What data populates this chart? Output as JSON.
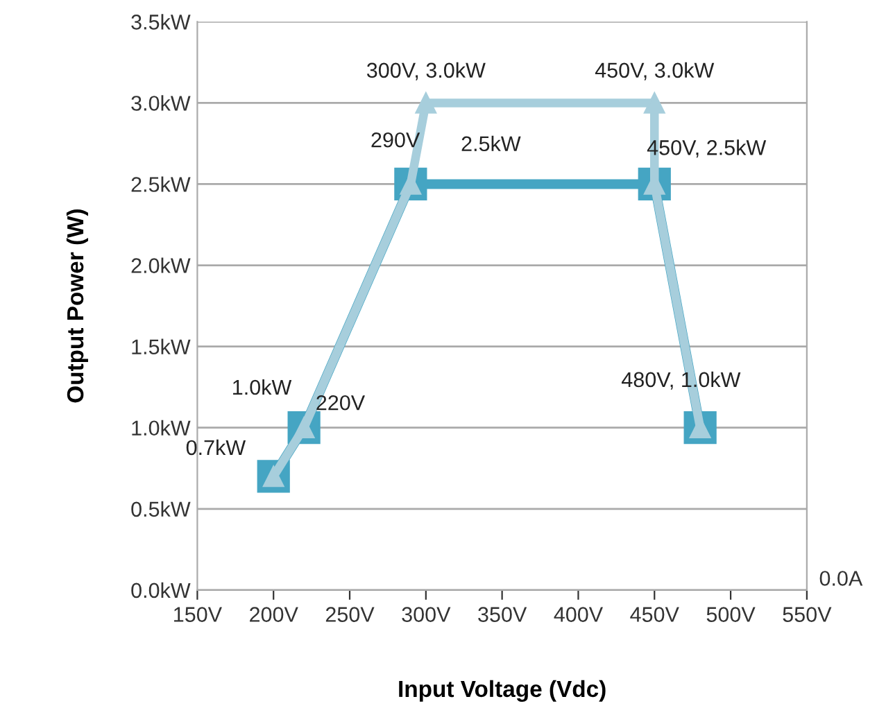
{
  "chart_data": {
    "type": "line",
    "xlabel": "Input Voltage (Vdc)",
    "ylabel": "Output Power (W)",
    "xlim": [
      150,
      550
    ],
    "ylim": [
      0,
      3.5
    ],
    "xticks": [
      {
        "value": 150,
        "label": "150V"
      },
      {
        "value": 200,
        "label": "200V"
      },
      {
        "value": 250,
        "label": "250V"
      },
      {
        "value": 300,
        "label": "300V"
      },
      {
        "value": 350,
        "label": "350V"
      },
      {
        "value": 400,
        "label": "400V"
      },
      {
        "value": 450,
        "label": "450V"
      },
      {
        "value": 500,
        "label": "500V"
      },
      {
        "value": 550,
        "label": "550V"
      }
    ],
    "yticks": [
      {
        "value": 0,
        "label": "0.0kW"
      },
      {
        "value": 0.5,
        "label": "0.5kW"
      },
      {
        "value": 1.0,
        "label": "1.0kW"
      },
      {
        "value": 1.5,
        "label": "1.5kW"
      },
      {
        "value": 2.0,
        "label": "2.0kW"
      },
      {
        "value": 2.5,
        "label": "2.5kW"
      },
      {
        "value": 3.0,
        "label": "3.0kW"
      },
      {
        "value": 3.5,
        "label": "3.5kW"
      }
    ],
    "grid": "y",
    "legend": false,
    "series": [
      {
        "color": "#45a5c3",
        "marker": "square",
        "x": [
          200,
          220,
          290,
          450,
          480
        ],
        "values": [
          0.7,
          1.0,
          2.5,
          2.5,
          1.0
        ]
      },
      {
        "color": "#a7cedc",
        "marker": "triangle",
        "x": [
          200,
          220,
          290,
          300,
          450,
          450,
          480
        ],
        "values": [
          0.7,
          1.0,
          2.5,
          3.0,
          3.0,
          2.5,
          1.0
        ]
      }
    ],
    "annotations": [
      {
        "text": "300V, 3.0kW",
        "x": 300,
        "y": 3.0
      },
      {
        "text": "450V, 3.0kW",
        "x": 450,
        "y": 3.0
      },
      {
        "text": "290V",
        "x": 290,
        "y": 2.5
      },
      {
        "text": "2.5kW",
        "x": 290,
        "y": 2.5
      },
      {
        "text": "450V, 2.5kW",
        "x": 450,
        "y": 2.5
      },
      {
        "text": "1.0kW",
        "x": 220,
        "y": 1.0
      },
      {
        "text": "220V",
        "x": 220,
        "y": 1.0
      },
      {
        "text": "0.7kW",
        "x": 200,
        "y": 0.7
      },
      {
        "text": "480V, 1.0kW",
        "x": 480,
        "y": 1.0
      },
      "0.0A"
    ]
  }
}
